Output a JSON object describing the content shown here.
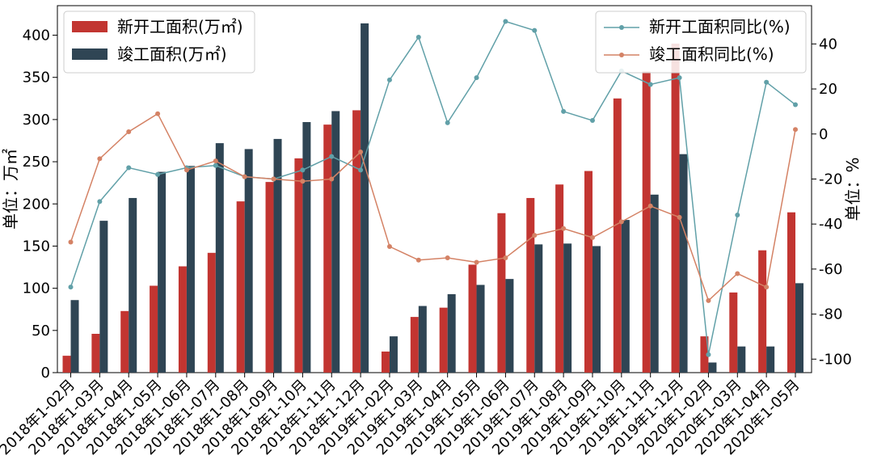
{
  "chart_data": {
    "type": "bar+line",
    "categories": [
      "2018年1-02月",
      "2018年1-03月",
      "2018年1-04月",
      "2018年1-05月",
      "2018年1-06月",
      "2018年1-07月",
      "2018年1-08月",
      "2018年1-09月",
      "2018年1-10月",
      "2018年1-11月",
      "2018年1-12月",
      "2019年1-02月",
      "2019年1-03月",
      "2019年1-04月",
      "2019年1-05月",
      "2019年1-06月",
      "2019年1-07月",
      "2019年1-08月",
      "2019年1-09月",
      "2019年1-10月",
      "2019年1-11月",
      "2019年1-12月",
      "2020年1-02月",
      "2020年1-03月",
      "2020年1-04月",
      "2020年1-05月"
    ],
    "bar_series": [
      {
        "name": "新开工面积(万㎡)",
        "color": "#c23531",
        "values": [
          20,
          46,
          73,
          103,
          126,
          142,
          203,
          226,
          254,
          294,
          311,
          25,
          66,
          77,
          128,
          189,
          207,
          223,
          239,
          325,
          357,
          390,
          43,
          95,
          145,
          190
        ]
      },
      {
        "name": "竣工面积(万㎡)",
        "color": "#2f4554",
        "values": [
          86,
          180,
          207,
          238,
          245,
          272,
          265,
          277,
          297,
          310,
          414,
          43,
          79,
          93,
          104,
          111,
          152,
          153,
          150,
          181,
          211,
          259,
          12,
          31,
          31,
          106
        ]
      }
    ],
    "line_series": [
      {
        "name": "新开工面积同比(%)",
        "color": "#61a0a8",
        "values": [
          -68,
          -30,
          -15,
          -18,
          -15,
          -14,
          -19,
          -20,
          -16,
          -10,
          -16,
          24,
          43,
          5,
          25,
          50,
          46,
          10,
          6,
          28,
          22,
          25,
          -98,
          -36,
          23,
          13
        ]
      },
      {
        "name": "竣工面积同比(%)",
        "color": "#d48265",
        "values": [
          -48,
          -11,
          1,
          9,
          -16,
          -12,
          -19,
          -20,
          -21,
          -20,
          -8,
          -50,
          -56,
          -55,
          -57,
          -55,
          -45,
          -42,
          -46,
          -39,
          -32,
          -37,
          -74,
          -62,
          -68,
          2
        ]
      }
    ],
    "y_left": {
      "label": "单位：万㎡",
      "min": 0,
      "max": 435,
      "ticks": [
        0,
        50,
        100,
        150,
        200,
        250,
        300,
        350,
        400
      ]
    },
    "y_right": {
      "label": "单位：%",
      "min": -106,
      "max": 57,
      "ticks": [
        -100,
        -80,
        -60,
        -40,
        -20,
        0,
        20,
        40
      ]
    },
    "legend_left_position": "top-left",
    "legend_right_position": "top-right"
  }
}
